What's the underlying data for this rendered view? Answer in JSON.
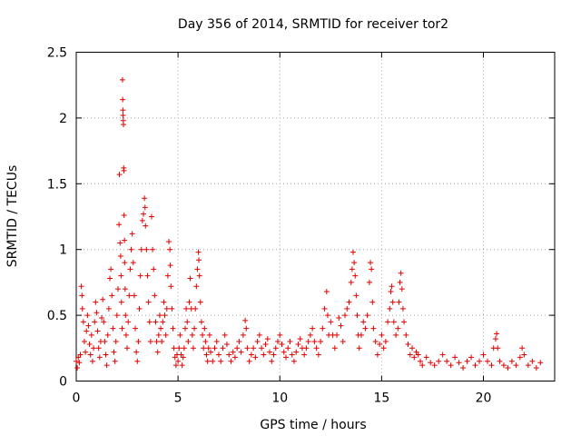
{
  "chart_data": {
    "type": "scatter",
    "title": "Day 356 of 2014, SRMTID for receiver tor2",
    "xlabel": "GPS time / hours",
    "ylabel": "SRMTID / TECUs",
    "xlim": [
      0,
      23.5
    ],
    "ylim": [
      0,
      2.5
    ],
    "x_ticks": [
      0,
      5,
      10,
      15,
      20
    ],
    "x_tick_labels": [
      "0",
      "5",
      "10",
      "15",
      "20"
    ],
    "y_ticks": [
      0,
      0.5,
      1,
      1.5,
      2,
      2.5
    ],
    "y_tick_labels": [
      "0",
      "0.5",
      "1",
      "1.5",
      "2",
      "2.5"
    ],
    "grid": true,
    "marker": "plus",
    "marker_color": "#e00000",
    "series": [
      {
        "name": "SRMTID tor2",
        "points": [
          [
            0.0,
            0.15
          ],
          [
            0.05,
            0.1
          ],
          [
            0.1,
            0.18
          ],
          [
            0.15,
            0.14
          ],
          [
            0.2,
            0.2
          ],
          [
            0.25,
            0.72
          ],
          [
            0.28,
            0.65
          ],
          [
            0.3,
            0.55
          ],
          [
            0.35,
            0.45
          ],
          [
            0.4,
            0.3
          ],
          [
            0.45,
            0.22
          ],
          [
            0.5,
            0.38
          ],
          [
            0.55,
            0.5
          ],
          [
            0.6,
            0.42
          ],
          [
            0.65,
            0.28
          ],
          [
            0.7,
            0.2
          ],
          [
            0.75,
            0.35
          ],
          [
            0.8,
            0.15
          ],
          [
            0.85,
            0.25
          ],
          [
            0.9,
            0.45
          ],
          [
            0.95,
            0.6
          ],
          [
            1.0,
            0.52
          ],
          [
            1.05,
            0.38
          ],
          [
            1.1,
            0.25
          ],
          [
            1.15,
            0.18
          ],
          [
            1.2,
            0.3
          ],
          [
            1.25,
            0.48
          ],
          [
            1.3,
            0.62
          ],
          [
            1.35,
            0.45
          ],
          [
            1.4,
            0.3
          ],
          [
            1.45,
            0.2
          ],
          [
            1.5,
            0.12
          ],
          [
            1.55,
            0.35
          ],
          [
            1.6,
            0.55
          ],
          [
            1.65,
            0.78
          ],
          [
            1.7,
            0.85
          ],
          [
            1.75,
            0.65
          ],
          [
            1.8,
            0.4
          ],
          [
            1.85,
            0.22
          ],
          [
            1.9,
            0.15
          ],
          [
            1.95,
            0.3
          ],
          [
            2.0,
            0.5
          ],
          [
            2.05,
            0.7
          ],
          [
            2.1,
            1.19
          ],
          [
            2.12,
            1.57
          ],
          [
            2.15,
            1.05
          ],
          [
            2.18,
            0.95
          ],
          [
            2.2,
            0.8
          ],
          [
            2.22,
            0.6
          ],
          [
            2.25,
            0.4
          ],
          [
            2.27,
            2.29
          ],
          [
            2.28,
            2.14
          ],
          [
            2.29,
            2.06
          ],
          [
            2.3,
            2.02
          ],
          [
            2.31,
            1.98
          ],
          [
            2.32,
            1.95
          ],
          [
            2.33,
            1.62
          ],
          [
            2.34,
            1.6
          ],
          [
            2.35,
            1.26
          ],
          [
            2.37,
            1.07
          ],
          [
            2.38,
            0.9
          ],
          [
            2.4,
            0.7
          ],
          [
            2.42,
            0.5
          ],
          [
            2.45,
            0.35
          ],
          [
            2.5,
            0.25
          ],
          [
            2.55,
            0.45
          ],
          [
            2.6,
            0.65
          ],
          [
            2.65,
            0.85
          ],
          [
            2.7,
            1.0
          ],
          [
            2.75,
            1.12
          ],
          [
            2.8,
            0.9
          ],
          [
            2.85,
            0.65
          ],
          [
            2.9,
            0.4
          ],
          [
            2.95,
            0.22
          ],
          [
            3.0,
            0.15
          ],
          [
            3.05,
            0.3
          ],
          [
            3.1,
            0.55
          ],
          [
            3.15,
            0.8
          ],
          [
            3.2,
            1.0
          ],
          [
            3.25,
            1.22
          ],
          [
            3.3,
            1.27
          ],
          [
            3.35,
            1.39
          ],
          [
            3.38,
            1.32
          ],
          [
            3.4,
            1.18
          ],
          [
            3.45,
            1.0
          ],
          [
            3.5,
            0.8
          ],
          [
            3.55,
            0.6
          ],
          [
            3.6,
            0.45
          ],
          [
            3.65,
            0.3
          ],
          [
            3.7,
            1.25
          ],
          [
            3.75,
            1.0
          ],
          [
            3.8,
            0.85
          ],
          [
            3.85,
            0.65
          ],
          [
            3.9,
            0.45
          ],
          [
            3.95,
            0.3
          ],
          [
            4.0,
            0.22
          ],
          [
            4.05,
            0.35
          ],
          [
            4.1,
            0.5
          ],
          [
            4.15,
            0.4
          ],
          [
            4.2,
            0.3
          ],
          [
            4.25,
            0.45
          ],
          [
            4.3,
            0.6
          ],
          [
            4.35,
            0.5
          ],
          [
            4.4,
            0.35
          ],
          [
            4.45,
            0.55
          ],
          [
            4.5,
            0.8
          ],
          [
            4.55,
            1.06
          ],
          [
            4.6,
            1.0
          ],
          [
            4.62,
            0.88
          ],
          [
            4.65,
            0.72
          ],
          [
            4.7,
            0.55
          ],
          [
            4.75,
            0.4
          ],
          [
            4.8,
            0.25
          ],
          [
            4.85,
            0.18
          ],
          [
            4.9,
            0.12
          ],
          [
            4.95,
            0.2
          ],
          [
            5.0,
            0.15
          ],
          [
            5.05,
            0.25
          ],
          [
            5.1,
            0.35
          ],
          [
            5.15,
            0.2
          ],
          [
            5.2,
            0.12
          ],
          [
            5.25,
            0.18
          ],
          [
            5.3,
            0.25
          ],
          [
            5.35,
            0.4
          ],
          [
            5.4,
            0.55
          ],
          [
            5.45,
            0.45
          ],
          [
            5.5,
            0.3
          ],
          [
            5.55,
            0.6
          ],
          [
            5.6,
            0.78
          ],
          [
            5.65,
            0.55
          ],
          [
            5.7,
            0.35
          ],
          [
            5.75,
            0.25
          ],
          [
            5.8,
            0.4
          ],
          [
            5.85,
            0.55
          ],
          [
            5.9,
            0.72
          ],
          [
            5.95,
            0.85
          ],
          [
            6.0,
            0.98
          ],
          [
            6.02,
            0.92
          ],
          [
            6.05,
            0.8
          ],
          [
            6.1,
            0.6
          ],
          [
            6.15,
            0.45
          ],
          [
            6.2,
            0.35
          ],
          [
            6.25,
            0.25
          ],
          [
            6.3,
            0.4
          ],
          [
            6.35,
            0.3
          ],
          [
            6.4,
            0.2
          ],
          [
            6.45,
            0.15
          ],
          [
            6.5,
            0.25
          ],
          [
            6.55,
            0.35
          ],
          [
            6.6,
            0.22
          ],
          [
            6.7,
            0.15
          ],
          [
            6.8,
            0.25
          ],
          [
            6.9,
            0.3
          ],
          [
            7.0,
            0.2
          ],
          [
            7.1,
            0.15
          ],
          [
            7.2,
            0.25
          ],
          [
            7.3,
            0.35
          ],
          [
            7.4,
            0.28
          ],
          [
            7.5,
            0.2
          ],
          [
            7.6,
            0.15
          ],
          [
            7.7,
            0.22
          ],
          [
            7.8,
            0.18
          ],
          [
            7.9,
            0.25
          ],
          [
            8.0,
            0.3
          ],
          [
            8.1,
            0.22
          ],
          [
            8.2,
            0.35
          ],
          [
            8.3,
            0.46
          ],
          [
            8.35,
            0.4
          ],
          [
            8.4,
            0.25
          ],
          [
            8.5,
            0.15
          ],
          [
            8.6,
            0.2
          ],
          [
            8.7,
            0.25
          ],
          [
            8.8,
            0.18
          ],
          [
            8.9,
            0.3
          ],
          [
            9.0,
            0.35
          ],
          [
            9.1,
            0.25
          ],
          [
            9.2,
            0.2
          ],
          [
            9.3,
            0.28
          ],
          [
            9.4,
            0.32
          ],
          [
            9.5,
            0.22
          ],
          [
            9.6,
            0.15
          ],
          [
            9.7,
            0.2
          ],
          [
            9.8,
            0.25
          ],
          [
            9.9,
            0.3
          ],
          [
            10.0,
            0.35
          ],
          [
            10.1,
            0.28
          ],
          [
            10.2,
            0.22
          ],
          [
            10.3,
            0.18
          ],
          [
            10.4,
            0.25
          ],
          [
            10.5,
            0.3
          ],
          [
            10.6,
            0.2
          ],
          [
            10.7,
            0.15
          ],
          [
            10.8,
            0.22
          ],
          [
            10.9,
            0.28
          ],
          [
            11.0,
            0.32
          ],
          [
            11.1,
            0.25
          ],
          [
            11.2,
            0.2
          ],
          [
            11.3,
            0.25
          ],
          [
            11.4,
            0.3
          ],
          [
            11.5,
            0.35
          ],
          [
            11.6,
            0.4
          ],
          [
            11.7,
            0.3
          ],
          [
            11.8,
            0.25
          ],
          [
            11.9,
            0.2
          ],
          [
            12.0,
            0.3
          ],
          [
            12.1,
            0.4
          ],
          [
            12.2,
            0.55
          ],
          [
            12.3,
            0.68
          ],
          [
            12.35,
            0.5
          ],
          [
            12.4,
            0.35
          ],
          [
            12.5,
            0.45
          ],
          [
            12.6,
            0.35
          ],
          [
            12.7,
            0.25
          ],
          [
            12.8,
            0.35
          ],
          [
            12.9,
            0.48
          ],
          [
            13.0,
            0.42
          ],
          [
            13.1,
            0.3
          ],
          [
            13.2,
            0.5
          ],
          [
            13.3,
            0.55
          ],
          [
            13.4,
            0.6
          ],
          [
            13.5,
            0.75
          ],
          [
            13.55,
            0.85
          ],
          [
            13.6,
            0.98
          ],
          [
            13.65,
            0.9
          ],
          [
            13.7,
            0.8
          ],
          [
            13.75,
            0.65
          ],
          [
            13.8,
            0.5
          ],
          [
            13.85,
            0.35
          ],
          [
            13.9,
            0.25
          ],
          [
            14.0,
            0.35
          ],
          [
            14.1,
            0.45
          ],
          [
            14.2,
            0.4
          ],
          [
            14.3,
            0.5
          ],
          [
            14.4,
            0.75
          ],
          [
            14.45,
            0.9
          ],
          [
            14.5,
            0.85
          ],
          [
            14.55,
            0.6
          ],
          [
            14.6,
            0.4
          ],
          [
            14.7,
            0.3
          ],
          [
            14.8,
            0.2
          ],
          [
            14.9,
            0.28
          ],
          [
            15.0,
            0.35
          ],
          [
            15.1,
            0.25
          ],
          [
            15.2,
            0.3
          ],
          [
            15.3,
            0.45
          ],
          [
            15.4,
            0.55
          ],
          [
            15.45,
            0.68
          ],
          [
            15.5,
            0.72
          ],
          [
            15.55,
            0.6
          ],
          [
            15.6,
            0.45
          ],
          [
            15.7,
            0.35
          ],
          [
            15.8,
            0.4
          ],
          [
            15.85,
            0.6
          ],
          [
            15.9,
            0.75
          ],
          [
            15.95,
            0.82
          ],
          [
            16.0,
            0.7
          ],
          [
            16.05,
            0.55
          ],
          [
            16.1,
            0.45
          ],
          [
            16.2,
            0.35
          ],
          [
            16.3,
            0.28
          ],
          [
            16.4,
            0.2
          ],
          [
            16.5,
            0.25
          ],
          [
            16.6,
            0.18
          ],
          [
            16.7,
            0.22
          ],
          [
            16.8,
            0.2
          ],
          [
            16.9,
            0.15
          ],
          [
            17.0,
            0.12
          ],
          [
            17.2,
            0.18
          ],
          [
            17.4,
            0.14
          ],
          [
            17.6,
            0.12
          ],
          [
            17.8,
            0.15
          ],
          [
            18.0,
            0.2
          ],
          [
            18.2,
            0.15
          ],
          [
            18.4,
            0.12
          ],
          [
            18.6,
            0.18
          ],
          [
            18.8,
            0.14
          ],
          [
            19.0,
            0.1
          ],
          [
            19.2,
            0.15
          ],
          [
            19.4,
            0.18
          ],
          [
            19.6,
            0.12
          ],
          [
            19.8,
            0.15
          ],
          [
            20.0,
            0.2
          ],
          [
            20.2,
            0.15
          ],
          [
            20.4,
            0.12
          ],
          [
            20.5,
            0.25
          ],
          [
            20.6,
            0.32
          ],
          [
            20.65,
            0.36
          ],
          [
            20.7,
            0.25
          ],
          [
            20.8,
            0.15
          ],
          [
            21.0,
            0.12
          ],
          [
            21.2,
            0.1
          ],
          [
            21.4,
            0.15
          ],
          [
            21.6,
            0.12
          ],
          [
            21.8,
            0.18
          ],
          [
            21.9,
            0.25
          ],
          [
            22.0,
            0.2
          ],
          [
            22.2,
            0.12
          ],
          [
            22.4,
            0.15
          ],
          [
            22.6,
            0.1
          ],
          [
            22.8,
            0.14
          ]
        ]
      }
    ]
  }
}
